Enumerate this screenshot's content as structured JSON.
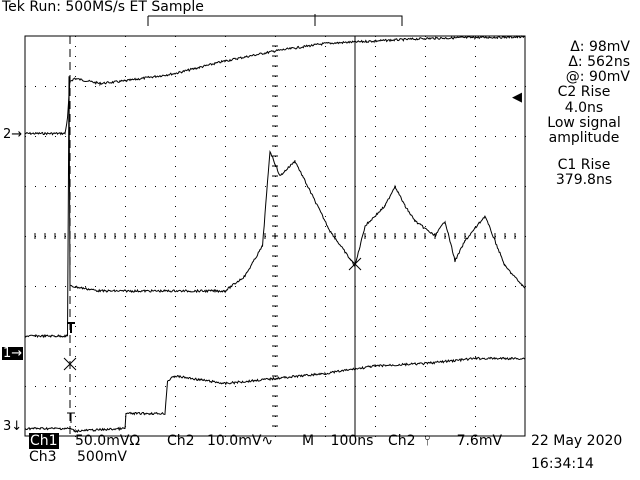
{
  "header": {
    "status": "Tek Run: 500MS/s ET Sample"
  },
  "cursor_readout": {
    "delta_v": "Δ: 98mV",
    "delta_t": "Δ: 562ns",
    "at": "@: 90mV"
  },
  "measurements": {
    "c2_label": "C2 Rise",
    "c2_value": "4.0ns",
    "c2_note_1": "Low signal",
    "c2_note_2": "amplitude",
    "c1_label": "C1 Rise",
    "c1_value": "379.8ns"
  },
  "channel_markers": {
    "ch2": "2",
    "ch1": "1",
    "ch3": "3"
  },
  "footer": {
    "ch1_label": "Ch1",
    "ch1_scale": "50.0mVΩ",
    "ch2_label": "Ch2",
    "ch2_scale": "10.0mV",
    "ch2_coupling": "∿",
    "timebase_label": "M",
    "timebase": "100ns",
    "trigger_source": "Ch2",
    "trigger_slope": "⫯",
    "trigger_level": "7.6mV",
    "ch3_label": "Ch3",
    "ch3_scale": "500mV",
    "date": "22 May 2020",
    "time": "16:34:14"
  },
  "colors": {
    "background": "#ffffff",
    "trace": "#000000",
    "grid": "#000000"
  },
  "chart_data": {
    "type": "line",
    "xlabel": "",
    "ylabel": "",
    "time_per_div": "100ns",
    "divisions": {
      "x": 10,
      "y": 8
    },
    "grid": true,
    "series": [
      {
        "name": "Ch2",
        "x_div": [
          0,
          0.8,
          0.85,
          0.9,
          1.0,
          1.5,
          2.0,
          3.0,
          4.0,
          5.0,
          6.0,
          7.0,
          8.0,
          9.0,
          10.0
        ],
        "y_div": [
          2.05,
          2.05,
          2.35,
          3.1,
          3.15,
          3.05,
          3.1,
          3.25,
          3.5,
          3.7,
          3.85,
          3.9,
          3.95,
          3.97,
          3.98
        ]
      },
      {
        "name": "Ch1",
        "x_div": [
          0,
          0.85,
          0.88,
          0.9,
          1.5,
          2.0,
          3.0,
          4.0,
          4.4,
          4.75,
          4.9,
          5.1,
          5.4,
          5.7,
          6.1,
          6.6,
          6.8,
          7.2,
          7.4,
          7.6,
          7.8,
          8.2,
          8.4,
          8.6,
          8.8,
          9.2,
          9.6,
          10.0
        ],
        "y_div": [
          -2.0,
          -2.0,
          3.2,
          -1.0,
          -1.1,
          -1.1,
          -1.1,
          -1.1,
          -0.8,
          -0.2,
          1.7,
          1.2,
          1.5,
          0.9,
          0.1,
          -0.6,
          0.2,
          0.6,
          1.0,
          0.6,
          0.3,
          0.0,
          0.3,
          -0.5,
          -0.1,
          0.4,
          -0.6,
          -1.05
        ]
      },
      {
        "name": "Ch3",
        "x_div": [
          0,
          0.9,
          1.0,
          2.0,
          2.02,
          2.8,
          2.85,
          3.0,
          4.0,
          5.0,
          6.0,
          7.0,
          8.0,
          9.0,
          10.0
        ],
        "y_div": [
          -3.85,
          -3.85,
          -3.9,
          -3.85,
          -3.55,
          -3.55,
          -2.9,
          -2.8,
          -2.95,
          -2.85,
          -2.75,
          -2.6,
          -2.55,
          -2.45,
          -2.45
        ]
      }
    ],
    "cursors": {
      "vertical_div": 6.6,
      "trigger_div": 0.9
    }
  }
}
